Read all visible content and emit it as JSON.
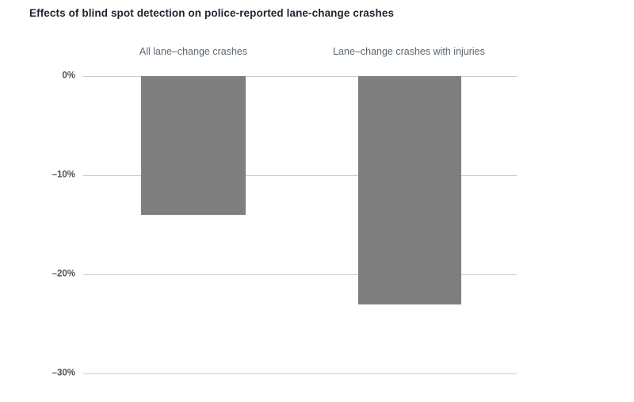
{
  "chart_data": {
    "type": "bar",
    "title": "Effects of blind spot detection on police-reported lane-change crashes",
    "categories": [
      "All lane–change crashes",
      "Lane–change crashes with injuries"
    ],
    "values": [
      -14,
      -23
    ],
    "unit": "%",
    "ylim": [
      -30,
      0
    ],
    "ytick_labels": [
      "0%",
      "–10%",
      "–20%",
      "–30%"
    ],
    "grid": "horizontal",
    "legend": "none",
    "bar_color": "#7f7f7f",
    "gridline_color": "#cccccc",
    "title_color": "#1f2430",
    "axis_label_color": "#4e5257",
    "category_label_color": "#5c6873",
    "background_color": "#ffffff"
  }
}
